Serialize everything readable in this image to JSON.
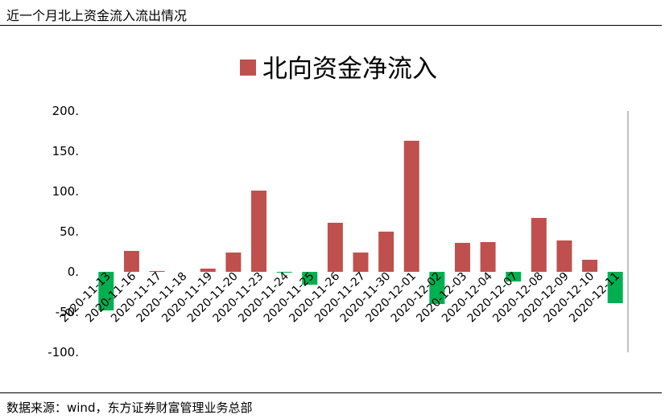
{
  "header": {
    "title": "近一个月北上资金流入流出情况"
  },
  "footer": {
    "source": "数据来源：wind，东方证券财富管理业务总部"
  },
  "colors": {
    "positive": "#c0504d",
    "negative": "#00b050",
    "axis": "#808080"
  },
  "chart_data": {
    "type": "bar",
    "title": "",
    "legend": {
      "label": "北向资金净流入",
      "position": "top-center"
    },
    "ylim": [
      -100,
      200
    ],
    "yticks": [
      -100,
      -50,
      0,
      50,
      100,
      150,
      200
    ],
    "ytick_labels": [
      "-100.",
      "-50.",
      "0.",
      "50.",
      "100.",
      "150.",
      "200."
    ],
    "grid": false,
    "categories": [
      "2020-11-13",
      "2020-11-16",
      "2020-11-17",
      "2020-11-18",
      "2020-11-19",
      "2020-11-20",
      "2020-11-23",
      "2020-11-24",
      "2020-11-25",
      "2020-11-26",
      "2020-11-27",
      "2020-11-30",
      "2020-12-01",
      "2020-12-02",
      "2020-12-03",
      "2020-12-04",
      "2020-12-07",
      "2020-12-08",
      "2020-12-09",
      "2020-12-10",
      "2020-12-11"
    ],
    "values": [
      -48,
      26,
      1,
      0,
      4,
      24,
      101,
      -1,
      -16,
      61,
      24,
      50,
      163,
      -40,
      36,
      37,
      -12,
      67,
      39,
      15,
      -39
    ]
  }
}
